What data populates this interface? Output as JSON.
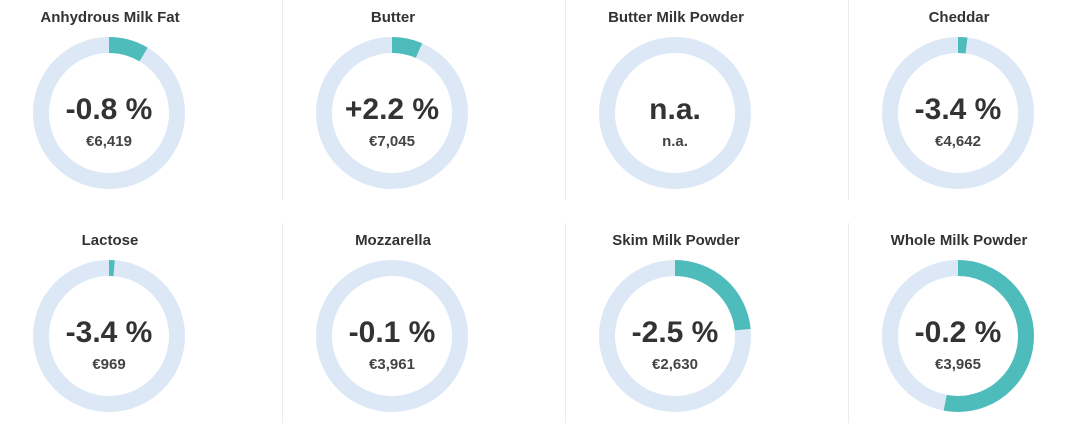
{
  "colors": {
    "track": "#dce8f6",
    "progress": "#4fbcbc",
    "text": "#333333"
  },
  "cards": [
    {
      "title": "Anhydrous Milk Fat",
      "change": "-0.8 %",
      "price": "€6,419",
      "progress": 0.085
    },
    {
      "title": "Butter",
      "change": "+2.2 %",
      "price": "€7,045",
      "progress": 0.065
    },
    {
      "title": "Butter Milk Powder",
      "change": "n.a.",
      "price": "n.a.",
      "progress": 0
    },
    {
      "title": "Cheddar",
      "change": "-3.4 %",
      "price": "€4,642",
      "progress": 0.02
    },
    {
      "title": "Lactose",
      "change": "-3.4 %",
      "price": "€969",
      "progress": 0.012
    },
    {
      "title": "Mozzarella",
      "change": "-0.1 %",
      "price": "€3,961",
      "progress": 0
    },
    {
      "title": "Skim Milk Powder",
      "change": "-2.5 %",
      "price": "€2,630",
      "progress": 0.235
    },
    {
      "title": "Whole Milk Powder",
      "change": "-0.2 %",
      "price": "€3,965",
      "progress": 0.53
    }
  ]
}
